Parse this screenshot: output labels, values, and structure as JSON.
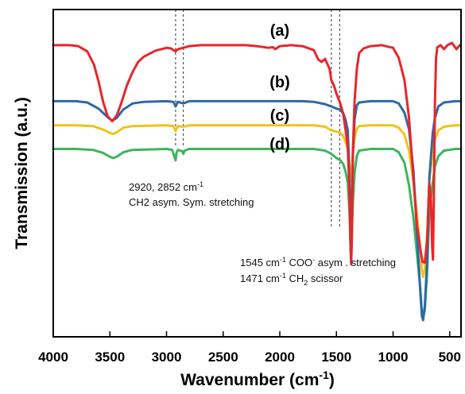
{
  "chart_data": {
    "type": "line",
    "xlabel": "Wavenumber (cm",
    "xlabel_sup": "-1",
    "xlabel_close": ")",
    "ylabel": "Transmission (a.u.)",
    "x_reversed": true,
    "xlim": [
      4000,
      400
    ],
    "ylim": [
      0,
      100
    ],
    "x_ticks": [
      4000,
      3500,
      3000,
      2500,
      2000,
      1500,
      1000,
      500
    ],
    "grid": false,
    "legend": "none",
    "reference_lines": [
      2920,
      2852,
      1545,
      1471
    ],
    "series": [
      {
        "name": "(a)",
        "color": "#e8262b",
        "points": [
          [
            4000,
            89.1
          ],
          [
            3850,
            89.1
          ],
          [
            3780,
            88.8
          ],
          [
            3700,
            87.2
          ],
          [
            3640,
            83.1
          ],
          [
            3600,
            78.0
          ],
          [
            3560,
            71.8
          ],
          [
            3520,
            67.4
          ],
          [
            3480,
            65.9
          ],
          [
            3440,
            67.6
          ],
          [
            3400,
            71.3
          ],
          [
            3350,
            76.8
          ],
          [
            3300,
            80.9
          ],
          [
            3250,
            84.0
          ],
          [
            3200,
            85.6
          ],
          [
            3100,
            87.4
          ],
          [
            3000,
            88.3
          ],
          [
            2960,
            88.1
          ],
          [
            2920,
            87.2
          ],
          [
            2900,
            87.9
          ],
          [
            2852,
            88.3
          ],
          [
            2800,
            88.8
          ],
          [
            2700,
            89.1
          ],
          [
            2500,
            89.1
          ],
          [
            2300,
            89.1
          ],
          [
            2200,
            88.8
          ],
          [
            2100,
            88.3
          ],
          [
            2060,
            88.5
          ],
          [
            2040,
            87.9
          ],
          [
            2000,
            88.8
          ],
          [
            1900,
            89.1
          ],
          [
            1800,
            88.8
          ],
          [
            1700,
            87.6
          ],
          [
            1660,
            84.7
          ],
          [
            1630,
            84.0
          ],
          [
            1600,
            84.9
          ],
          [
            1560,
            81.8
          ],
          [
            1545,
            78.5
          ],
          [
            1520,
            76.6
          ],
          [
            1500,
            74.3
          ],
          [
            1471,
            71.8
          ],
          [
            1440,
            68.1
          ],
          [
            1420,
            63.5
          ],
          [
            1400,
            58.1
          ],
          [
            1385,
            45.2
          ],
          [
            1375,
            27.0
          ],
          [
            1370,
            22.2
          ],
          [
            1365,
            28.9
          ],
          [
            1355,
            56.0
          ],
          [
            1340,
            72.0
          ],
          [
            1320,
            81.8
          ],
          [
            1300,
            86.7
          ],
          [
            1260,
            88.1
          ],
          [
            1200,
            88.8
          ],
          [
            1100,
            89.1
          ],
          [
            1000,
            88.3
          ],
          [
            950,
            85.3
          ],
          [
            900,
            78.5
          ],
          [
            860,
            67.1
          ],
          [
            820,
            48.3
          ],
          [
            790,
            34.6
          ],
          [
            760,
            27.0
          ],
          [
            740,
            22.9
          ],
          [
            720,
            22.7
          ],
          [
            700,
            29.4
          ],
          [
            680,
            46.9
          ],
          [
            665,
            42.0
          ],
          [
            655,
            27.7
          ],
          [
            648,
            23.6
          ],
          [
            640,
            42.0
          ],
          [
            630,
            72.0
          ],
          [
            620,
            85.3
          ],
          [
            610,
            88.5
          ],
          [
            580,
            89.1
          ],
          [
            550,
            87.9
          ],
          [
            520,
            89.1
          ],
          [
            480,
            89.8
          ],
          [
            440,
            87.9
          ],
          [
            410,
            89.1
          ]
        ]
      },
      {
        "name": "(b)",
        "color": "#2e69a7",
        "points": [
          [
            4000,
            72.0
          ],
          [
            3800,
            72.0
          ],
          [
            3700,
            71.6
          ],
          [
            3600,
            69.7
          ],
          [
            3520,
            67.1
          ],
          [
            3480,
            66.0
          ],
          [
            3440,
            66.9
          ],
          [
            3380,
            69.5
          ],
          [
            3300,
            71.3
          ],
          [
            3200,
            71.8
          ],
          [
            3000,
            72.0
          ],
          [
            2940,
            71.8
          ],
          [
            2920,
            70.4
          ],
          [
            2900,
            71.8
          ],
          [
            2852,
            71.3
          ],
          [
            2800,
            72.0
          ],
          [
            2500,
            72.0
          ],
          [
            2200,
            72.0
          ],
          [
            2000,
            72.0
          ],
          [
            1800,
            72.0
          ],
          [
            1700,
            71.8
          ],
          [
            1600,
            71.1
          ],
          [
            1545,
            70.4
          ],
          [
            1500,
            69.7
          ],
          [
            1471,
            69.5
          ],
          [
            1440,
            68.3
          ],
          [
            1420,
            66.4
          ],
          [
            1400,
            63.1
          ],
          [
            1385,
            50.0
          ],
          [
            1375,
            32.3
          ],
          [
            1370,
            28.9
          ],
          [
            1365,
            36.1
          ],
          [
            1355,
            55.2
          ],
          [
            1340,
            66.4
          ],
          [
            1320,
            70.7
          ],
          [
            1300,
            71.6
          ],
          [
            1200,
            72.0
          ],
          [
            1000,
            72.0
          ],
          [
            950,
            71.3
          ],
          [
            900,
            68.5
          ],
          [
            860,
            63.5
          ],
          [
            820,
            50.9
          ],
          [
            790,
            32.5
          ],
          [
            760,
            14.2
          ],
          [
            745,
            6.3
          ],
          [
            735,
            5.1
          ],
          [
            720,
            9.4
          ],
          [
            700,
            22.7
          ],
          [
            680,
            48.3
          ],
          [
            650,
            62.3
          ],
          [
            630,
            66.9
          ],
          [
            600,
            70.4
          ],
          [
            550,
            71.6
          ],
          [
            450,
            72.0
          ],
          [
            410,
            72.0
          ]
        ]
      },
      {
        "name": "(c)",
        "color": "#f2c318",
        "points": [
          [
            4000,
            64.6
          ],
          [
            3800,
            64.6
          ],
          [
            3650,
            64.4
          ],
          [
            3560,
            63.3
          ],
          [
            3500,
            62.3
          ],
          [
            3470,
            62.0
          ],
          [
            3440,
            62.5
          ],
          [
            3380,
            63.9
          ],
          [
            3300,
            64.4
          ],
          [
            3000,
            64.6
          ],
          [
            2940,
            64.4
          ],
          [
            2920,
            62.9
          ],
          [
            2900,
            64.4
          ],
          [
            2852,
            64.2
          ],
          [
            2800,
            64.6
          ],
          [
            2500,
            64.6
          ],
          [
            2000,
            64.6
          ],
          [
            1700,
            64.6
          ],
          [
            1600,
            64.2
          ],
          [
            1545,
            63.1
          ],
          [
            1500,
            62.7
          ],
          [
            1471,
            62.5
          ],
          [
            1440,
            61.3
          ],
          [
            1420,
            59.7
          ],
          [
            1400,
            57.4
          ],
          [
            1385,
            52.8
          ],
          [
            1375,
            48.5
          ],
          [
            1370,
            47.6
          ],
          [
            1365,
            49.9
          ],
          [
            1355,
            56.0
          ],
          [
            1340,
            60.9
          ],
          [
            1320,
            63.5
          ],
          [
            1300,
            64.4
          ],
          [
            1200,
            64.6
          ],
          [
            1000,
            64.6
          ],
          [
            950,
            63.9
          ],
          [
            900,
            61.8
          ],
          [
            860,
            56.9
          ],
          [
            820,
            47.8
          ],
          [
            790,
            37.6
          ],
          [
            760,
            27.0
          ],
          [
            745,
            20.4
          ],
          [
            735,
            18.3
          ],
          [
            720,
            20.6
          ],
          [
            700,
            30.4
          ],
          [
            680,
            47.6
          ],
          [
            650,
            56.7
          ],
          [
            630,
            60.4
          ],
          [
            600,
            63.1
          ],
          [
            550,
            64.2
          ],
          [
            450,
            64.6
          ],
          [
            410,
            64.6
          ]
        ]
      },
      {
        "name": "(d)",
        "color": "#3cb55a",
        "points": [
          [
            4000,
            57.4
          ],
          [
            3800,
            57.4
          ],
          [
            3650,
            57.1
          ],
          [
            3560,
            56.2
          ],
          [
            3500,
            55.0
          ],
          [
            3470,
            54.6
          ],
          [
            3440,
            55.0
          ],
          [
            3380,
            56.4
          ],
          [
            3300,
            57.1
          ],
          [
            3000,
            57.4
          ],
          [
            2950,
            57.1
          ],
          [
            2925,
            54.4
          ],
          [
            2920,
            53.9
          ],
          [
            2912,
            56.2
          ],
          [
            2900,
            57.1
          ],
          [
            2860,
            56.7
          ],
          [
            2852,
            55.9
          ],
          [
            2840,
            56.9
          ],
          [
            2800,
            57.4
          ],
          [
            2500,
            57.4
          ],
          [
            2000,
            57.4
          ],
          [
            1700,
            57.4
          ],
          [
            1600,
            56.9
          ],
          [
            1545,
            55.9
          ],
          [
            1500,
            54.6
          ],
          [
            1471,
            54.1
          ],
          [
            1440,
            52.8
          ],
          [
            1420,
            50.6
          ],
          [
            1400,
            47.1
          ],
          [
            1385,
            38.5
          ],
          [
            1375,
            26.8
          ],
          [
            1370,
            24.3
          ],
          [
            1365,
            28.9
          ],
          [
            1355,
            40.6
          ],
          [
            1340,
            50.2
          ],
          [
            1320,
            55.2
          ],
          [
            1300,
            56.9
          ],
          [
            1200,
            57.4
          ],
          [
            1000,
            57.4
          ],
          [
            950,
            56.4
          ],
          [
            900,
            53.2
          ],
          [
            860,
            46.4
          ],
          [
            820,
            36.4
          ],
          [
            790,
            25.9
          ],
          [
            760,
            14.9
          ],
          [
            745,
            7.5
          ],
          [
            735,
            5.8
          ],
          [
            720,
            8.2
          ],
          [
            700,
            19.4
          ],
          [
            680,
            38.5
          ],
          [
            650,
            47.1
          ],
          [
            630,
            52.1
          ],
          [
            600,
            55.2
          ],
          [
            550,
            56.9
          ],
          [
            450,
            57.4
          ],
          [
            410,
            57.4
          ]
        ]
      }
    ],
    "annotations": [
      {
        "id": "ch2",
        "line1": "2920, 2852 cm",
        "line1_sup": "-1",
        "line2": "CH2 asym. Sym. stretching"
      },
      {
        "id": "coo",
        "line1_a": "1545 cm",
        "line1_a_sup": "-1",
        "line1_b": " COO",
        "line1_b_sup": "-",
        "line1_c": " asym . stretching",
        "line2_a": "1471 cm",
        "line2_a_sup": "-1",
        "line2_b": " CH",
        "line2_b_sub": "2",
        "line2_c": " scissor"
      }
    ]
  }
}
